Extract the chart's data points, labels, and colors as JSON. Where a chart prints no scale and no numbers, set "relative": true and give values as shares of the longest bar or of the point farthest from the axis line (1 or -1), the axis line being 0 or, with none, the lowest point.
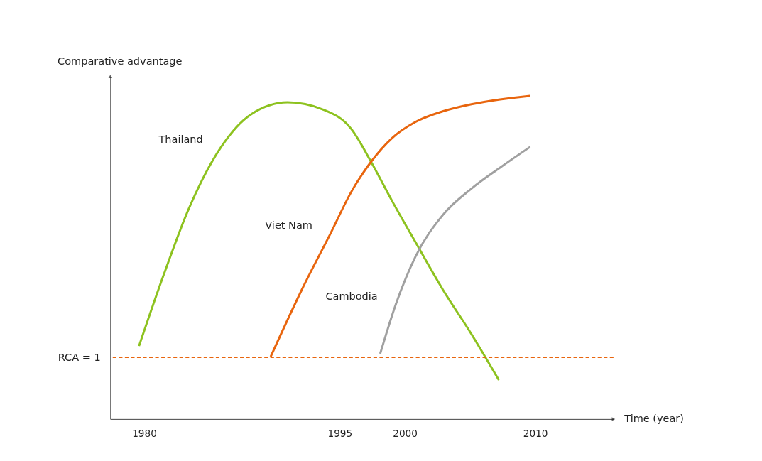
{
  "chart_data": {
    "type": "line",
    "relative": true,
    "xlabel": "Time (year)",
    "ylabel": "Comparative advantage",
    "xlim": [
      1977.4,
      2016
    ],
    "xticks": [
      1980,
      1995,
      2000,
      2010
    ],
    "grid": false,
    "marker": "none",
    "line_style": "solid",
    "ref_lines": [
      {
        "axis": "y",
        "value": 0.19,
        "color": "#e8650e",
        "line_style": "dashed"
      }
    ],
    "annotations": [
      "RCA = 1"
    ],
    "series": [
      {
        "name": "Thailand",
        "color": "#8dc21f",
        "x": [
          1979.6,
          1981.5,
          1983.4,
          1985.9,
          1988.2,
          1991.0,
          1993.7,
          1995.9,
          1997.4,
          1999.0,
          2000.8,
          2002.9,
          2005.1,
          2007.2
        ],
        "values": [
          0.226,
          0.447,
          0.649,
          0.842,
          0.943,
          0.98,
          0.958,
          0.897,
          0.796,
          0.676,
          0.548,
          0.401,
          0.263,
          0.121
        ]
      },
      {
        "name": "Viet Nam",
        "color": "#e8650e",
        "x": [
          1989.7,
          1992.1,
          1994.3,
          1995.9,
          1997.4,
          1999.0,
          2000.8,
          2002.9,
          2005.1,
          2007.3,
          2009.6
        ],
        "values": [
          0.193,
          0.401,
          0.575,
          0.704,
          0.796,
          0.869,
          0.919,
          0.952,
          0.974,
          0.989,
          1.0
        ]
      },
      {
        "name": "Cambodia",
        "color": "#a0a0a0",
        "x": [
          1998.1,
          1999.3,
          2000.8,
          2002.9,
          2005.1,
          2007.3,
          2009.6
        ],
        "values": [
          0.202,
          0.355,
          0.502,
          0.631,
          0.713,
          0.778,
          0.842
        ]
      }
    ]
  }
}
